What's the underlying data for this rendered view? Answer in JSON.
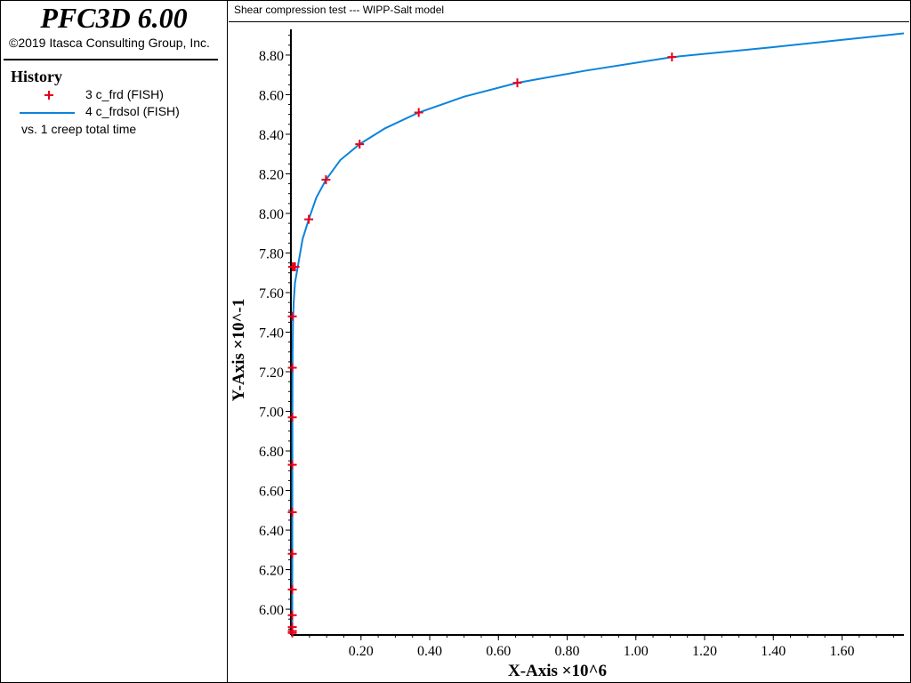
{
  "app": {
    "title": "PFC3D 6.00",
    "copyright": "©2019 Itasca Consulting Group, Inc."
  },
  "legend": {
    "title": "History",
    "items": [
      {
        "label": "3 c_frd (FISH)",
        "marker": "plus",
        "color": "#e8001c"
      },
      {
        "label": "4 c_frdsol (FISH)",
        "marker": "line",
        "color": "#0a84dc"
      }
    ],
    "vs": "vs. 1 creep total time"
  },
  "plot": {
    "title": "Shear compression test --- WIPP-Salt model"
  },
  "chart_data": {
    "type": "line",
    "xlabel": "X-Axis ×10^6",
    "ylabel": "Y-Axis ×10^-1",
    "xlim": [
      -0.004,
      1.78
    ],
    "ylim": [
      5.87,
      8.93
    ],
    "xticks": [
      "0.20",
      "0.40",
      "0.60",
      "0.80",
      "1.00",
      "1.20",
      "1.40",
      "1.60"
    ],
    "yticks": [
      "6.00",
      "6.20",
      "6.40",
      "6.60",
      "6.80",
      "7.00",
      "7.20",
      "7.40",
      "7.60",
      "7.80",
      "8.00",
      "8.20",
      "8.40",
      "8.60",
      "8.80"
    ],
    "grid": false,
    "series": [
      {
        "name": "3 c_frd (FISH)",
        "style": "markers",
        "color": "#e8001c",
        "x": [
          0.0,
          0.0,
          0.0,
          0.0,
          0.0,
          0.0,
          0.0,
          0.0,
          0.0,
          0.0,
          0.0,
          0.001,
          0.002,
          0.004,
          0.008,
          0.048,
          0.098,
          0.196,
          0.368,
          0.655,
          1.105
        ],
        "y": [
          5.88,
          5.89,
          5.91,
          5.97,
          6.1,
          6.28,
          6.49,
          6.73,
          6.97,
          7.22,
          7.48,
          7.73,
          7.73,
          7.73,
          7.73,
          7.97,
          8.17,
          8.35,
          8.51,
          8.66,
          8.79
        ]
      },
      {
        "name": "4 c_frdsol (FISH)",
        "style": "line",
        "color": "#0a84dc",
        "x": [
          0.0,
          0.0005,
          0.001,
          0.002,
          0.004,
          0.008,
          0.016,
          0.03,
          0.048,
          0.07,
          0.098,
          0.14,
          0.196,
          0.27,
          0.368,
          0.5,
          0.655,
          0.85,
          1.105,
          1.4,
          1.78
        ],
        "y": [
          5.88,
          7.0,
          7.3,
          7.45,
          7.55,
          7.65,
          7.73,
          7.87,
          7.97,
          8.08,
          8.17,
          8.27,
          8.35,
          8.43,
          8.51,
          8.59,
          8.66,
          8.72,
          8.79,
          8.84,
          8.91
        ]
      }
    ]
  }
}
